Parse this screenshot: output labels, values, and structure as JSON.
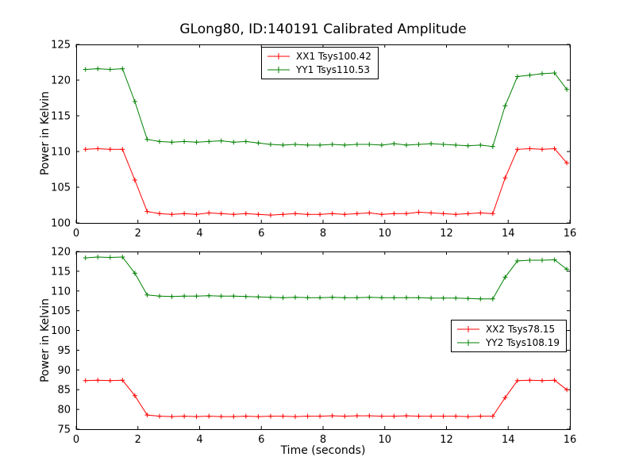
{
  "figure": {
    "title": "GLong80, ID:140191 Calibrated Amplitude",
    "background": "#ffffff",
    "axis_color": "#000000"
  },
  "chart_data": [
    {
      "type": "line",
      "title": "",
      "xlabel": "",
      "ylabel": "Power in Kelvin",
      "xlim": [
        0,
        16
      ],
      "ylim": [
        100,
        125
      ],
      "xticks": [
        0,
        2,
        4,
        6,
        8,
        10,
        12,
        14,
        16
      ],
      "yticks": [
        100,
        105,
        110,
        115,
        120,
        125
      ],
      "grid": false,
      "legend_position": "upper center",
      "x": [
        0.3,
        0.7,
        1.1,
        1.5,
        1.9,
        2.3,
        2.7,
        3.1,
        3.5,
        3.9,
        4.3,
        4.7,
        5.1,
        5.5,
        5.9,
        6.3,
        6.7,
        7.1,
        7.5,
        7.9,
        8.3,
        8.7,
        9.1,
        9.5,
        9.9,
        10.3,
        10.7,
        11.1,
        11.5,
        11.9,
        12.3,
        12.7,
        13.1,
        13.5,
        13.9,
        14.3,
        14.7,
        15.1,
        15.5,
        15.9
      ],
      "series": [
        {
          "name": "XX1 Tsys100.42",
          "color": "#ff0000",
          "marker": "+",
          "values": [
            110.3,
            110.4,
            110.3,
            110.3,
            106.0,
            101.6,
            101.3,
            101.2,
            101.3,
            101.2,
            101.4,
            101.3,
            101.2,
            101.3,
            101.2,
            101.1,
            101.2,
            101.3,
            101.2,
            101.2,
            101.3,
            101.2,
            101.3,
            101.4,
            101.2,
            101.3,
            101.3,
            101.5,
            101.4,
            101.3,
            101.2,
            101.3,
            101.4,
            101.3,
            106.3,
            110.3,
            110.4,
            110.3,
            110.4,
            108.4
          ]
        },
        {
          "name": "YY1 Tsys110.53",
          "color": "#008000",
          "marker": "+",
          "values": [
            121.5,
            121.6,
            121.5,
            121.6,
            117.0,
            111.7,
            111.4,
            111.3,
            111.4,
            111.3,
            111.4,
            111.5,
            111.3,
            111.4,
            111.2,
            111.0,
            110.9,
            111.0,
            110.9,
            110.9,
            111.0,
            110.9,
            111.0,
            111.0,
            110.9,
            111.1,
            110.9,
            111.0,
            111.1,
            111.0,
            110.9,
            110.8,
            110.9,
            110.7,
            116.4,
            120.5,
            120.7,
            120.9,
            121.0,
            118.7
          ]
        }
      ]
    },
    {
      "type": "line",
      "title": "",
      "xlabel": "Time (seconds)",
      "ylabel": "Power in Kelvin",
      "xlim": [
        0,
        16
      ],
      "ylim": [
        75,
        120
      ],
      "xticks": [
        0,
        2,
        4,
        6,
        8,
        10,
        12,
        14,
        16
      ],
      "yticks": [
        75,
        80,
        85,
        90,
        95,
        100,
        105,
        110,
        115,
        120
      ],
      "grid": false,
      "legend_position": "center right",
      "x": [
        0.3,
        0.7,
        1.1,
        1.5,
        1.9,
        2.3,
        2.7,
        3.1,
        3.5,
        3.9,
        4.3,
        4.7,
        5.1,
        5.5,
        5.9,
        6.3,
        6.7,
        7.1,
        7.5,
        7.9,
        8.3,
        8.7,
        9.1,
        9.5,
        9.9,
        10.3,
        10.7,
        11.1,
        11.5,
        11.9,
        12.3,
        12.7,
        13.1,
        13.5,
        13.9,
        14.3,
        14.7,
        15.1,
        15.5,
        15.9
      ],
      "series": [
        {
          "name": "XX2 Tsys78.15",
          "color": "#ff0000",
          "marker": "+",
          "values": [
            87.3,
            87.4,
            87.3,
            87.4,
            83.5,
            78.6,
            78.3,
            78.2,
            78.3,
            78.2,
            78.3,
            78.2,
            78.2,
            78.3,
            78.2,
            78.3,
            78.3,
            78.2,
            78.3,
            78.3,
            78.4,
            78.3,
            78.4,
            78.4,
            78.3,
            78.3,
            78.4,
            78.3,
            78.3,
            78.3,
            78.3,
            78.2,
            78.3,
            78.3,
            83.0,
            87.3,
            87.4,
            87.3,
            87.4,
            85.0
          ]
        },
        {
          "name": "YY2 Tsys108.19",
          "color": "#008000",
          "marker": "+",
          "values": [
            118.4,
            118.6,
            118.5,
            118.6,
            114.5,
            109.0,
            108.7,
            108.6,
            108.7,
            108.7,
            108.8,
            108.7,
            108.7,
            108.6,
            108.5,
            108.4,
            108.3,
            108.4,
            108.3,
            108.3,
            108.4,
            108.3,
            108.3,
            108.4,
            108.3,
            108.3,
            108.3,
            108.3,
            108.2,
            108.2,
            108.2,
            108.1,
            108.0,
            108.0,
            113.5,
            117.6,
            117.8,
            117.8,
            117.9,
            115.5
          ]
        }
      ]
    }
  ]
}
